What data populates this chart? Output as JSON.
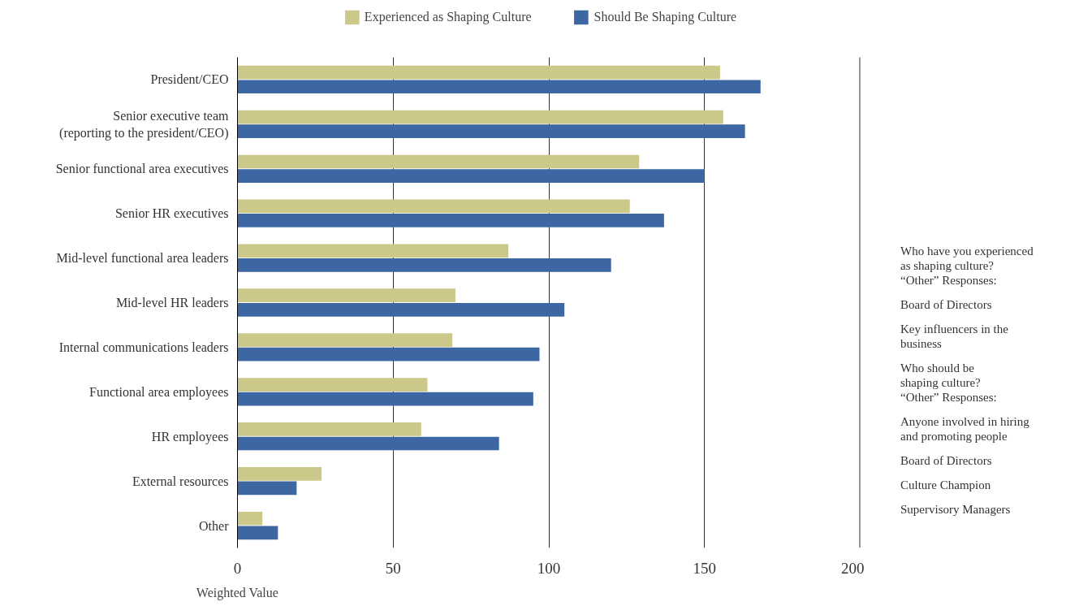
{
  "chart_data": {
    "type": "bar",
    "orientation": "horizontal",
    "xlabel": "Weighted Value",
    "categories": [
      "President/CEO",
      "Senior executive team\n(reporting to the president/CEO)",
      "Senior functional area executives",
      "Senior HR executives",
      "Mid-level functional area leaders",
      "Mid-level HR leaders",
      "Internal communications leaders",
      "Functional area employees",
      "HR employees",
      "External resources",
      "Other"
    ],
    "series": [
      {
        "name": "Experienced as Shaping Culture",
        "color": "#cbc88a",
        "values": [
          155,
          156,
          129,
          126,
          87,
          70,
          69,
          61,
          59,
          27,
          8
        ]
      },
      {
        "name": "Should Be Shaping Culture",
        "color": "#3d67a2",
        "values": [
          168,
          163,
          150,
          137,
          120,
          105,
          97,
          95,
          84,
          19,
          13
        ]
      }
    ],
    "xlim": [
      0,
      200
    ],
    "xticks": [
      0,
      50,
      100,
      150,
      200
    ],
    "grid": "x",
    "legend": "top",
    "annotations": [
      "Who have you experienced\nas shaping culture?\n“Other” Responses:",
      "Board of Directors",
      "Key influencers in the\nbusiness",
      "Who should be\nshaping culture?\n“Other” Responses:",
      "Anyone involved in hiring\nand promoting people",
      "Board of Directors",
      "Culture Champion",
      "Supervisory Managers"
    ]
  }
}
